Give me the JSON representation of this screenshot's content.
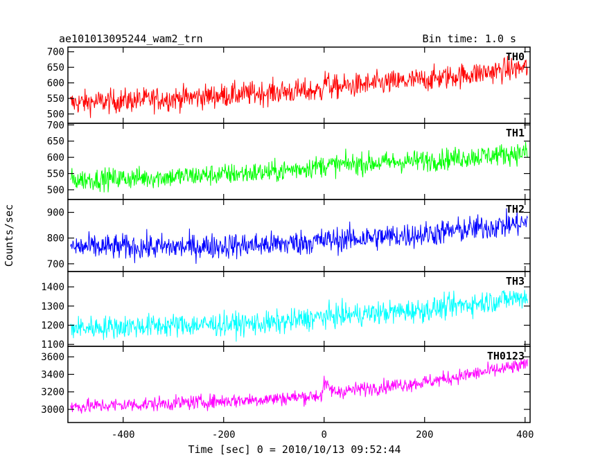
{
  "header": {
    "title": "ae101013095244_wam2_trn",
    "bin_time": "Bin time: 1.0 s"
  },
  "chart_data": {
    "type": "line",
    "title": "ae101013095244_wam2_trn",
    "subtitle": "Bin time: 1.0 s",
    "xlabel": "Time [sec] 0 = 2010/10/13 09:52:44",
    "ylabel": "Counts/sec",
    "xlim": [
      -510,
      410
    ],
    "x_ticks": [
      -400,
      -200,
      0,
      200,
      400
    ],
    "grid": false,
    "panels": [
      {
        "name": "TH0",
        "color": "#ff0000",
        "ylim": [
          470,
          715
        ],
        "y_ticks": [
          500,
          550,
          600,
          650,
          700
        ],
        "trend": [
          {
            "x": -505,
            "y": 535
          },
          {
            "x": -300,
            "y": 550
          },
          {
            "x": -100,
            "y": 570
          },
          {
            "x": -5,
            "y": 575
          },
          {
            "x": 0,
            "y": 610
          },
          {
            "x": 15,
            "y": 585
          },
          {
            "x": 200,
            "y": 610
          },
          {
            "x": 405,
            "y": 650
          }
        ],
        "noise_amplitude": 35
      },
      {
        "name": "TH1",
        "color": "#00ff00",
        "ylim": [
          470,
          705
        ],
        "y_ticks": [
          500,
          550,
          600,
          650,
          700
        ],
        "trend": [
          {
            "x": -505,
            "y": 530
          },
          {
            "x": -300,
            "y": 540
          },
          {
            "x": -100,
            "y": 555
          },
          {
            "x": 0,
            "y": 575
          },
          {
            "x": 200,
            "y": 590
          },
          {
            "x": 405,
            "y": 615
          }
        ],
        "noise_amplitude": 30
      },
      {
        "name": "TH2",
        "color": "#0000ff",
        "ylim": [
          670,
          950
        ],
        "y_ticks": [
          700,
          800,
          900
        ],
        "trend": [
          {
            "x": -505,
            "y": 765
          },
          {
            "x": -300,
            "y": 765
          },
          {
            "x": -100,
            "y": 775
          },
          {
            "x": 0,
            "y": 790
          },
          {
            "x": 200,
            "y": 815
          },
          {
            "x": 405,
            "y": 860
          }
        ],
        "noise_amplitude": 45
      },
      {
        "name": "TH3",
        "color": "#00ffff",
        "ylim": [
          1090,
          1480
        ],
        "y_ticks": [
          1100,
          1200,
          1300,
          1400
        ],
        "trend": [
          {
            "x": -505,
            "y": 1185
          },
          {
            "x": -300,
            "y": 1200
          },
          {
            "x": -100,
            "y": 1210
          },
          {
            "x": 0,
            "y": 1245
          },
          {
            "x": 200,
            "y": 1280
          },
          {
            "x": 405,
            "y": 1350
          }
        ],
        "noise_amplitude": 55
      },
      {
        "name": "TH0123",
        "color": "#ff00ff",
        "ylim": [
          2850,
          3720
        ],
        "y_ticks": [
          3000,
          3200,
          3400,
          3600
        ],
        "trend": [
          {
            "x": -505,
            "y": 3030
          },
          {
            "x": -300,
            "y": 3070
          },
          {
            "x": -100,
            "y": 3120
          },
          {
            "x": -5,
            "y": 3160
          },
          {
            "x": 0,
            "y": 3290
          },
          {
            "x": 20,
            "y": 3200
          },
          {
            "x": 200,
            "y": 3310
          },
          {
            "x": 405,
            "y": 3510
          }
        ],
        "noise_amplitude": 75
      }
    ]
  }
}
